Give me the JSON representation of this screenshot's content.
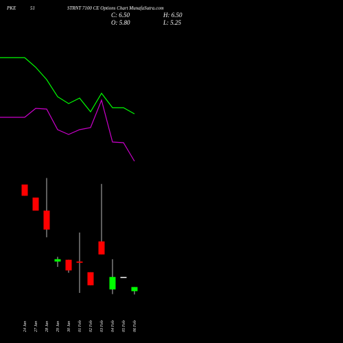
{
  "chart_data": {
    "type": "candlestick",
    "symbol": "PKE",
    "interval": "51",
    "title": "STRNT 7100 CE Options Chart MunafaSutra.com",
    "info": [
      "C: 6.50",
      "H: 6.50",
      "O: 5.80",
      "L: 5.25"
    ],
    "categories": [
      "24 Jan",
      "27 Jan",
      "28 Jan",
      "29 Jan",
      "30 Jan",
      "01 Feb",
      "02 Feb",
      "03 Feb",
      "04 Feb",
      "05 Feb",
      "06 Feb"
    ],
    "open": [
      23.8,
      21.6,
      19.4,
      10.8,
      11.1,
      10.8,
      9.0,
      14.2,
      6.1,
      8.2,
      5.8
    ],
    "high": [
      23.8,
      21.6,
      24.9,
      11.6,
      11.1,
      15.7,
      9.0,
      23.9,
      11.2,
      8.2,
      6.5
    ],
    "low": [
      21.9,
      19.4,
      14.9,
      9.9,
      8.9,
      5.5,
      6.8,
      12.0,
      5.3,
      8.2,
      5.25
    ],
    "close": [
      21.9,
      19.4,
      16.2,
      11.2,
      9.3,
      10.6,
      6.8,
      12.0,
      8.2,
      8.2,
      6.5
    ],
    "ylim": [
      4,
      26
    ],
    "up_color": "#00ff00",
    "down_color": "#ff0000",
    "flat_color": "#ffffff",
    "y2lim": [
      0,
      100
    ],
    "series": [
      {
        "color": "#00ff00",
        "axis": "y2",
        "values": [
          83,
          76,
          67,
          54.5,
          49.5,
          53.5,
          43.5,
          57,
          46.5,
          46.5,
          42
        ]
      },
      {
        "color": "#cc00cc",
        "axis": "y2",
        "values": [
          39.5,
          46,
          45.5,
          30.5,
          27,
          30.5,
          32,
          52,
          21.5,
          21,
          7.5
        ]
      }
    ]
  }
}
